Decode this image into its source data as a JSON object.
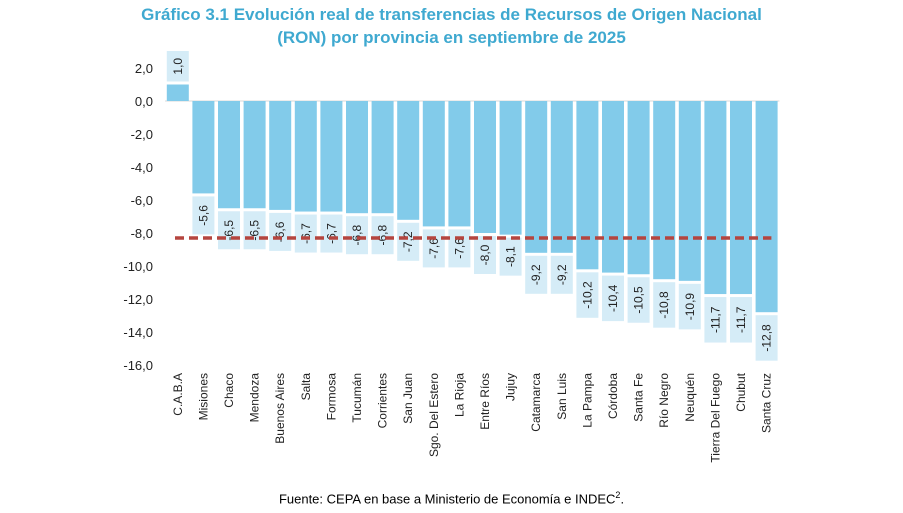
{
  "chart_data": {
    "type": "bar",
    "title_line1": "Gráfico 3.1 Evolución real de transferencias de Recursos de Origen Nacional",
    "title_line2": "(RON) por provincia en septiembre de 2025",
    "categories": [
      "C.A.B.A",
      "Misiones",
      "Chaco",
      "Mendoza",
      "Buenos Aires",
      "Salta",
      "Formosa",
      "Tucumán",
      "Corrientes",
      "San Juan",
      "Sgo. Del Estero",
      "La Rioja",
      "Entre Ríos",
      "Jujuy",
      "Catamarca",
      "San Luis",
      "La Pampa",
      "Córdoba",
      "Santa Fe",
      "Río Negro",
      "Neuquén",
      "Tierra Del Fuego",
      "Chubut",
      "Santa Cruz"
    ],
    "values": [
      1.0,
      -5.6,
      -6.5,
      -6.5,
      -6.6,
      -6.7,
      -6.7,
      -6.8,
      -6.8,
      -7.2,
      -7.6,
      -7.6,
      -8.0,
      -8.1,
      -9.2,
      -9.2,
      -10.2,
      -10.4,
      -10.5,
      -10.8,
      -10.9,
      -11.7,
      -11.7,
      -12.8
    ],
    "labels": [
      "1,0",
      "-5,6",
      "-6,5",
      "-6,5",
      "-6,6",
      "-6,7",
      "-6,7",
      "-6,8",
      "-6,8",
      "-7,2",
      "-7,6",
      "-7,6",
      "-8,0",
      "-8,1",
      "-9,2",
      "-9,2",
      "-10,2",
      "-10,4",
      "-10,5",
      "-10,8",
      "-10,9",
      "-11,7",
      "-11,7",
      "-12,8"
    ],
    "yticks": [
      "2,0",
      "0,0",
      "-2,0",
      "-4,0",
      "-6,0",
      "-8,0",
      "-10,0",
      "-12,0",
      "-14,0",
      "-16,0"
    ],
    "ytick_values": [
      2,
      0,
      -2,
      -4,
      -6,
      -8,
      -10,
      -12,
      -14,
      -16
    ],
    "ylim": [
      -16,
      2
    ],
    "average_line": -8.3,
    "bar_color": "#82cbea",
    "label_bg": "#d5ecf7",
    "line_color": "#b5453f",
    "source": "Fuente: CEPA en base a Ministerio de Economía e INDEC",
    "source_sup": "2"
  }
}
